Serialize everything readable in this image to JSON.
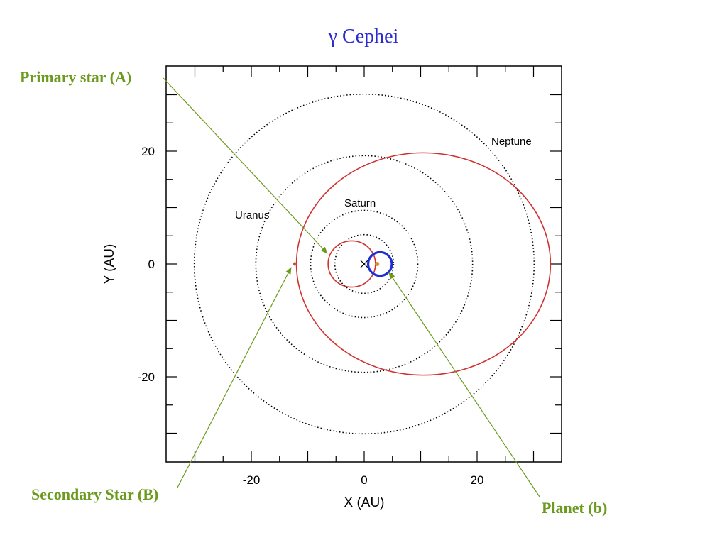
{
  "title": "γ Cephei",
  "callouts": {
    "primary": "Primary star (A)",
    "secondary": "Secondary Star (B)",
    "planet": "Planet (b)"
  },
  "axes": {
    "xlabel": "X (AU)",
    "ylabel": "Y (AU)",
    "xlim": [
      -35,
      35
    ],
    "ylim": [
      -35,
      35
    ],
    "x_ticks": [
      "-20",
      "0",
      "20"
    ],
    "y_ticks": [
      "20",
      "0",
      "-20"
    ]
  },
  "orbit_labels": {
    "neptune": "Neptune",
    "saturn": "Saturn",
    "uranus": "Uranus"
  },
  "reference_orbits_au": {
    "jupiter": 5.2,
    "saturn": 9.5,
    "uranus": 19.2,
    "neptune": 30.1
  },
  "binary_orbits": {
    "primary_orbit": {
      "center": [
        -2.2,
        0
      ],
      "rx": 4.2,
      "ry": 4.1
    },
    "secondary_orbit": {
      "center": [
        10.5,
        0
      ],
      "rx": 22.5,
      "ry": 19.7
    }
  },
  "planet_orbit": {
    "center": [
      2.8,
      0
    ],
    "r": 2.1
  },
  "bodies": {
    "primary_star": [
      2.3,
      0
    ],
    "secondary_star": [
      -12.3,
      0
    ],
    "barycenter": [
      0,
      0
    ]
  },
  "colors": {
    "title": "#2b2bd0",
    "callout": "#6b9a1e",
    "binary_orbit": "#d0312d",
    "planet_orbit": "#1f2fd6",
    "star": "#e0902a"
  }
}
